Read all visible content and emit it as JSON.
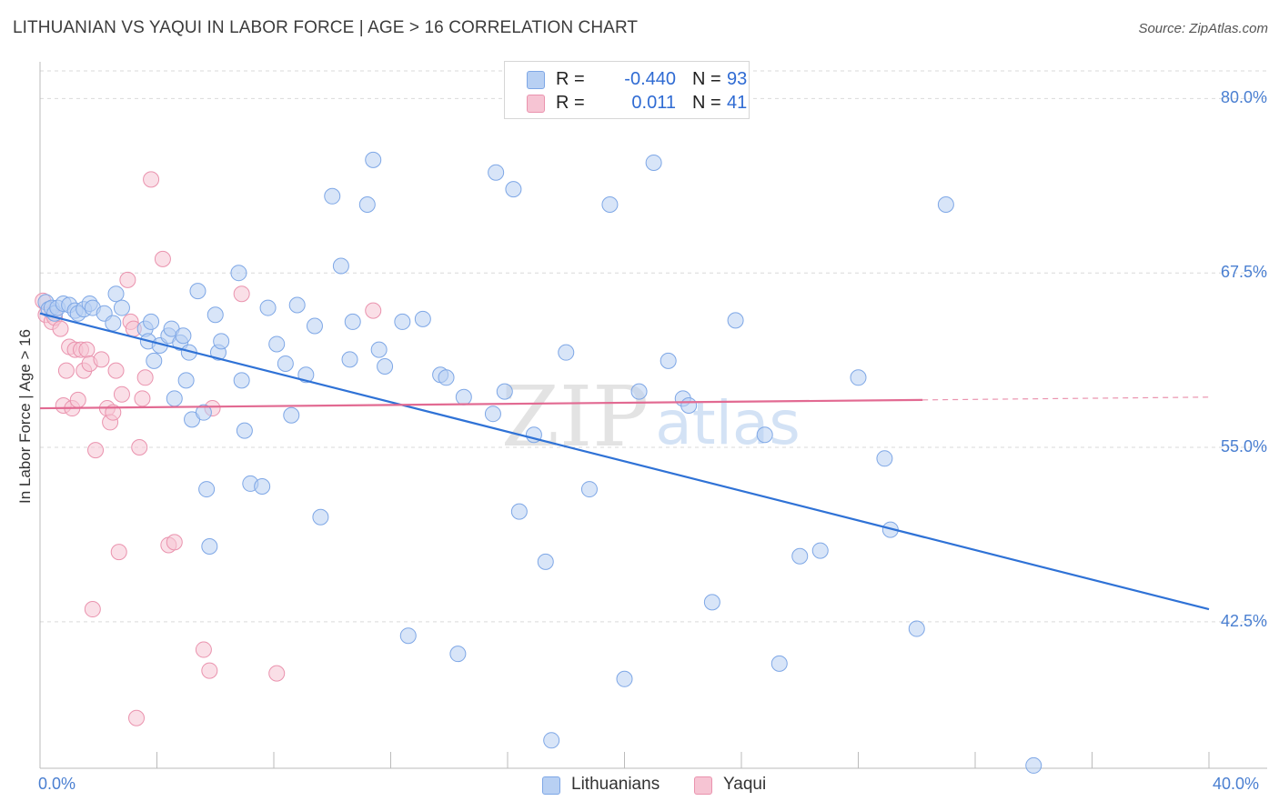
{
  "title": "LITHUANIAN VS YAQUI IN LABOR FORCE | AGE > 16 CORRELATION CHART",
  "source": "Source: ZipAtlas.com",
  "watermark": {
    "zip": "ZIP",
    "atlas": "atlas"
  },
  "colors": {
    "blue_fill": "#b8d0f3",
    "blue_stroke": "#7ea7e6",
    "blue_line": "#2f72d6",
    "pink_fill": "#f6c4d3",
    "pink_stroke": "#ea93ae",
    "pink_line": "#e26a92",
    "grid": "#d9d9d9",
    "axis_text": "#4a7fd1"
  },
  "legend": {
    "rows": [
      {
        "series": "Lithuanians",
        "r_label": "R =",
        "r_value": "-0.440",
        "n_label": "N =",
        "n_value": "93"
      },
      {
        "series": "Yaqui",
        "r_label": "R =",
        "r_value": "0.011",
        "n_label": "N =",
        "n_value": "41"
      }
    ]
  },
  "bottom_legend": [
    "Lithuanians",
    "Yaqui"
  ],
  "chart_data": {
    "type": "scatter",
    "title": "LITHUANIAN VS YAQUI IN LABOR FORCE | AGE > 16 CORRELATION CHART",
    "xlabel": "",
    "ylabel": "In Labor Force | Age > 16",
    "xlim": [
      0,
      40
    ],
    "ylim": [
      32,
      82.5
    ],
    "x_tick_labels": [
      "0.0%",
      "40.0%"
    ],
    "y_ticks": [
      42.5,
      55.0,
      67.5,
      80.0
    ],
    "y_tick_labels": [
      "42.5%",
      "55.0%",
      "67.5%",
      "80.0%"
    ],
    "grid": true,
    "series": [
      {
        "name": "Lithuanians",
        "x": [
          0.2,
          0.3,
          0.4,
          0.5,
          0.6,
          0.8,
          1.0,
          1.2,
          1.3,
          1.5,
          1.7,
          1.8,
          2.2,
          2.5,
          2.6,
          2.8,
          3.6,
          3.7,
          3.8,
          3.9,
          4.1,
          4.4,
          4.5,
          4.6,
          4.8,
          4.9,
          5.0,
          5.1,
          5.2,
          5.4,
          5.6,
          5.7,
          5.8,
          6.0,
          6.1,
          6.2,
          6.8,
          6.9,
          7.0,
          7.2,
          7.6,
          7.8,
          8.1,
          8.4,
          8.6,
          8.8,
          9.1,
          9.4,
          9.6,
          10.0,
          10.3,
          10.6,
          10.7,
          11.2,
          11.4,
          11.6,
          11.8,
          12.4,
          12.6,
          13.1,
          13.7,
          13.9,
          14.3,
          14.5,
          15.5,
          15.6,
          15.9,
          16.2,
          16.4,
          16.9,
          17.3,
          17.5,
          18.0,
          18.8,
          19.5,
          20.0,
          20.5,
          21.0,
          21.5,
          22.0,
          22.2,
          23.0,
          23.8,
          24.8,
          25.3,
          26.0,
          26.7,
          28.0,
          28.9,
          29.1,
          30.0,
          31.0,
          34.0
        ],
        "y": [
          65.4,
          64.9,
          65.0,
          64.6,
          65.0,
          65.3,
          65.2,
          64.8,
          64.6,
          64.9,
          65.3,
          65.0,
          64.6,
          63.9,
          66.0,
          65.0,
          63.5,
          62.6,
          64.0,
          61.2,
          62.3,
          63.0,
          63.5,
          58.5,
          62.5,
          63.0,
          59.8,
          61.8,
          57.0,
          66.2,
          57.5,
          52.0,
          47.9,
          64.5,
          61.8,
          62.6,
          67.5,
          59.8,
          56.2,
          52.4,
          52.2,
          65.0,
          62.4,
          61.0,
          57.3,
          65.2,
          60.2,
          63.7,
          50.0,
          73.0,
          68.0,
          61.3,
          64.0,
          72.4,
          75.6,
          62.0,
          60.8,
          64.0,
          41.5,
          64.2,
          60.2,
          60.0,
          40.2,
          58.6,
          57.4,
          74.7,
          59.0,
          73.5,
          50.4,
          55.9,
          46.8,
          34.0,
          61.8,
          52.0,
          72.4,
          38.4,
          59.0,
          75.4,
          61.2,
          58.5,
          58.0,
          43.9,
          64.1,
          55.9,
          39.5,
          47.2,
          47.6,
          60.0,
          54.2,
          49.1,
          42.0,
          72.4,
          32.2
        ],
        "trend": {
          "x": [
            0,
            40
          ],
          "y": [
            64.6,
            43.4
          ]
        }
      },
      {
        "name": "Yaqui",
        "x": [
          0.1,
          0.2,
          0.4,
          0.5,
          0.7,
          0.8,
          0.9,
          1.0,
          1.1,
          1.2,
          1.3,
          1.4,
          1.5,
          1.6,
          1.7,
          1.8,
          1.9,
          2.1,
          2.3,
          2.4,
          2.5,
          2.6,
          2.7,
          2.8,
          3.0,
          3.1,
          3.2,
          3.3,
          3.4,
          3.5,
          3.6,
          3.8,
          4.2,
          4.4,
          4.6,
          5.6,
          5.8,
          5.9,
          6.9,
          8.1,
          11.4
        ],
        "y": [
          65.5,
          64.5,
          64.0,
          64.3,
          63.5,
          58.0,
          60.5,
          62.2,
          57.8,
          62.0,
          58.4,
          62.0,
          60.5,
          62.0,
          61.0,
          43.4,
          54.8,
          61.3,
          57.8,
          56.8,
          57.5,
          60.5,
          47.5,
          58.8,
          67.0,
          64.0,
          63.5,
          35.6,
          55.0,
          58.5,
          60.0,
          74.2,
          68.5,
          48.0,
          48.2,
          40.5,
          39.0,
          57.8,
          66.0,
          38.8,
          64.8
        ],
        "trend": {
          "x": [
            0,
            30.2
          ],
          "y": [
            57.8,
            58.4
          ]
        },
        "trend_dashed": {
          "x": [
            30.2,
            40
          ],
          "y": [
            58.4,
            58.6
          ]
        }
      }
    ]
  }
}
